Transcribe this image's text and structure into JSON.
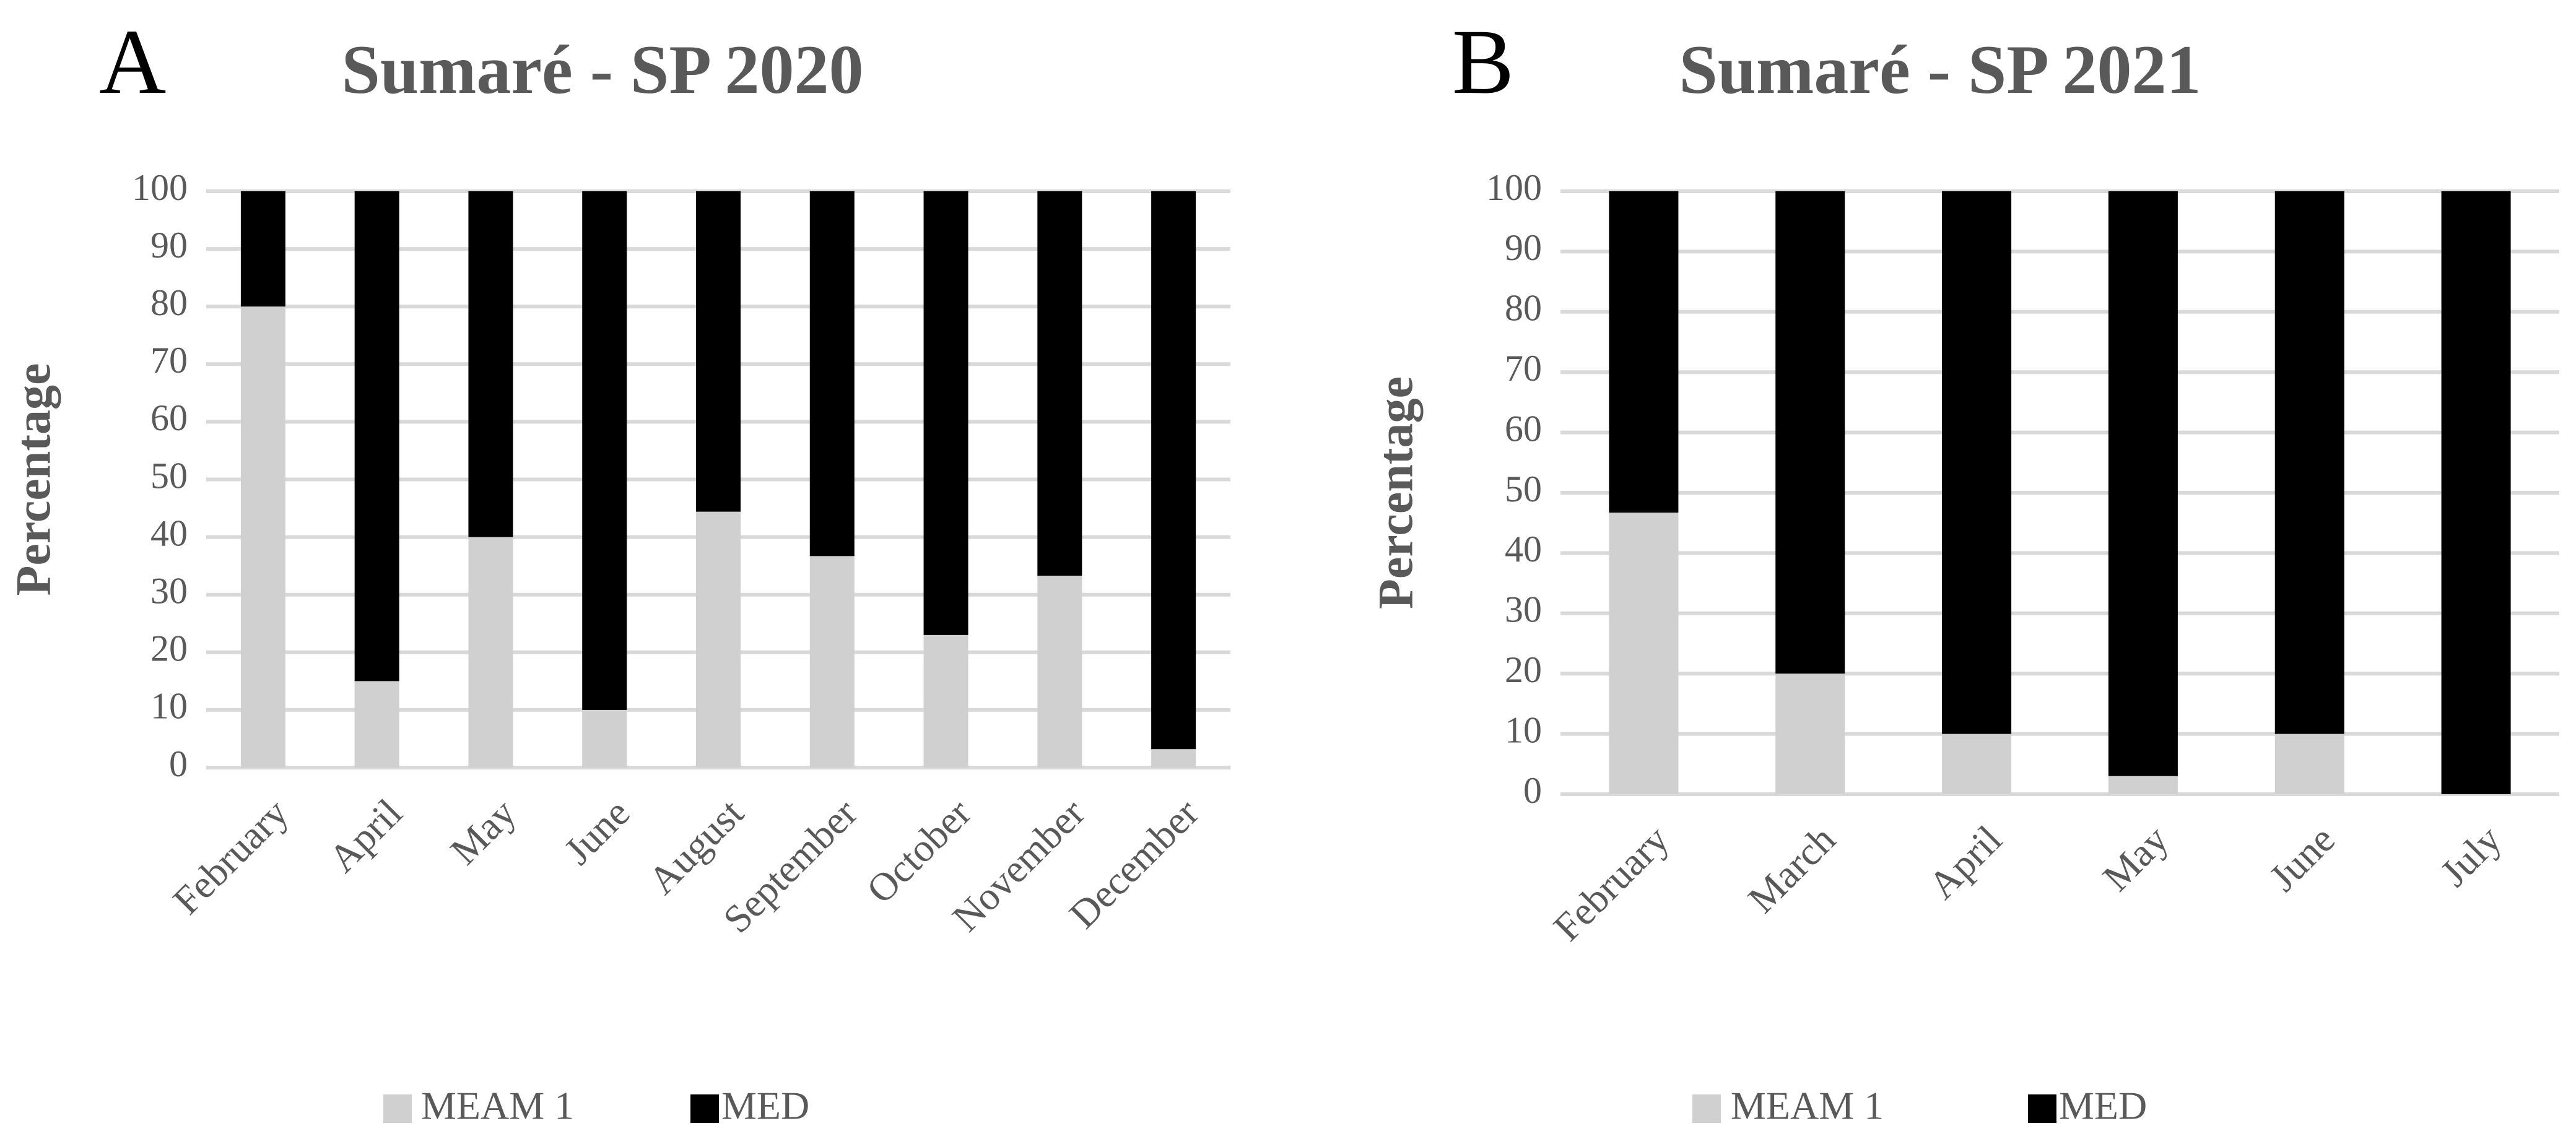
{
  "colors": {
    "MEAM 1": "#d0d0d0",
    "MED": "#000000",
    "grid": "#d9d9d9",
    "text": "#595959"
  },
  "chart_data": [
    {
      "panel_label": "A",
      "type": "bar",
      "stacked": true,
      "title": "Sumaré - SP 2020",
      "xlabel": "",
      "ylabel": "Percentage",
      "ylim": [
        0,
        100
      ],
      "yticks": [
        0,
        10,
        20,
        30,
        40,
        50,
        60,
        70,
        80,
        90,
        100
      ],
      "grid": true,
      "legend_position": "bottom",
      "categories": [
        "February",
        "April",
        "May",
        "June",
        "August",
        "September",
        "October",
        "November",
        "December"
      ],
      "series": [
        {
          "name": "MEAM 1",
          "values": [
            80,
            15,
            40,
            10,
            44.4,
            36.7,
            23,
            33.3,
            3.2
          ]
        },
        {
          "name": "MED",
          "values": [
            20,
            85,
            60,
            90,
            55.6,
            63.3,
            77,
            66.7,
            96.8
          ]
        }
      ]
    },
    {
      "panel_label": "B",
      "type": "bar",
      "stacked": true,
      "title": "Sumaré - SP 2021",
      "xlabel": "",
      "ylabel": "Percentage",
      "ylim": [
        0,
        100
      ],
      "yticks": [
        0,
        10,
        20,
        30,
        40,
        50,
        60,
        70,
        80,
        90,
        100
      ],
      "grid": true,
      "legend_position": "bottom",
      "categories": [
        "February",
        "March",
        "April",
        "May",
        "June",
        "July"
      ],
      "series": [
        {
          "name": "MEAM 1",
          "values": [
            46.7,
            20,
            10,
            3,
            10,
            0
          ]
        },
        {
          "name": "MED",
          "values": [
            53.3,
            80,
            90,
            97,
            90,
            100
          ]
        }
      ]
    }
  ]
}
